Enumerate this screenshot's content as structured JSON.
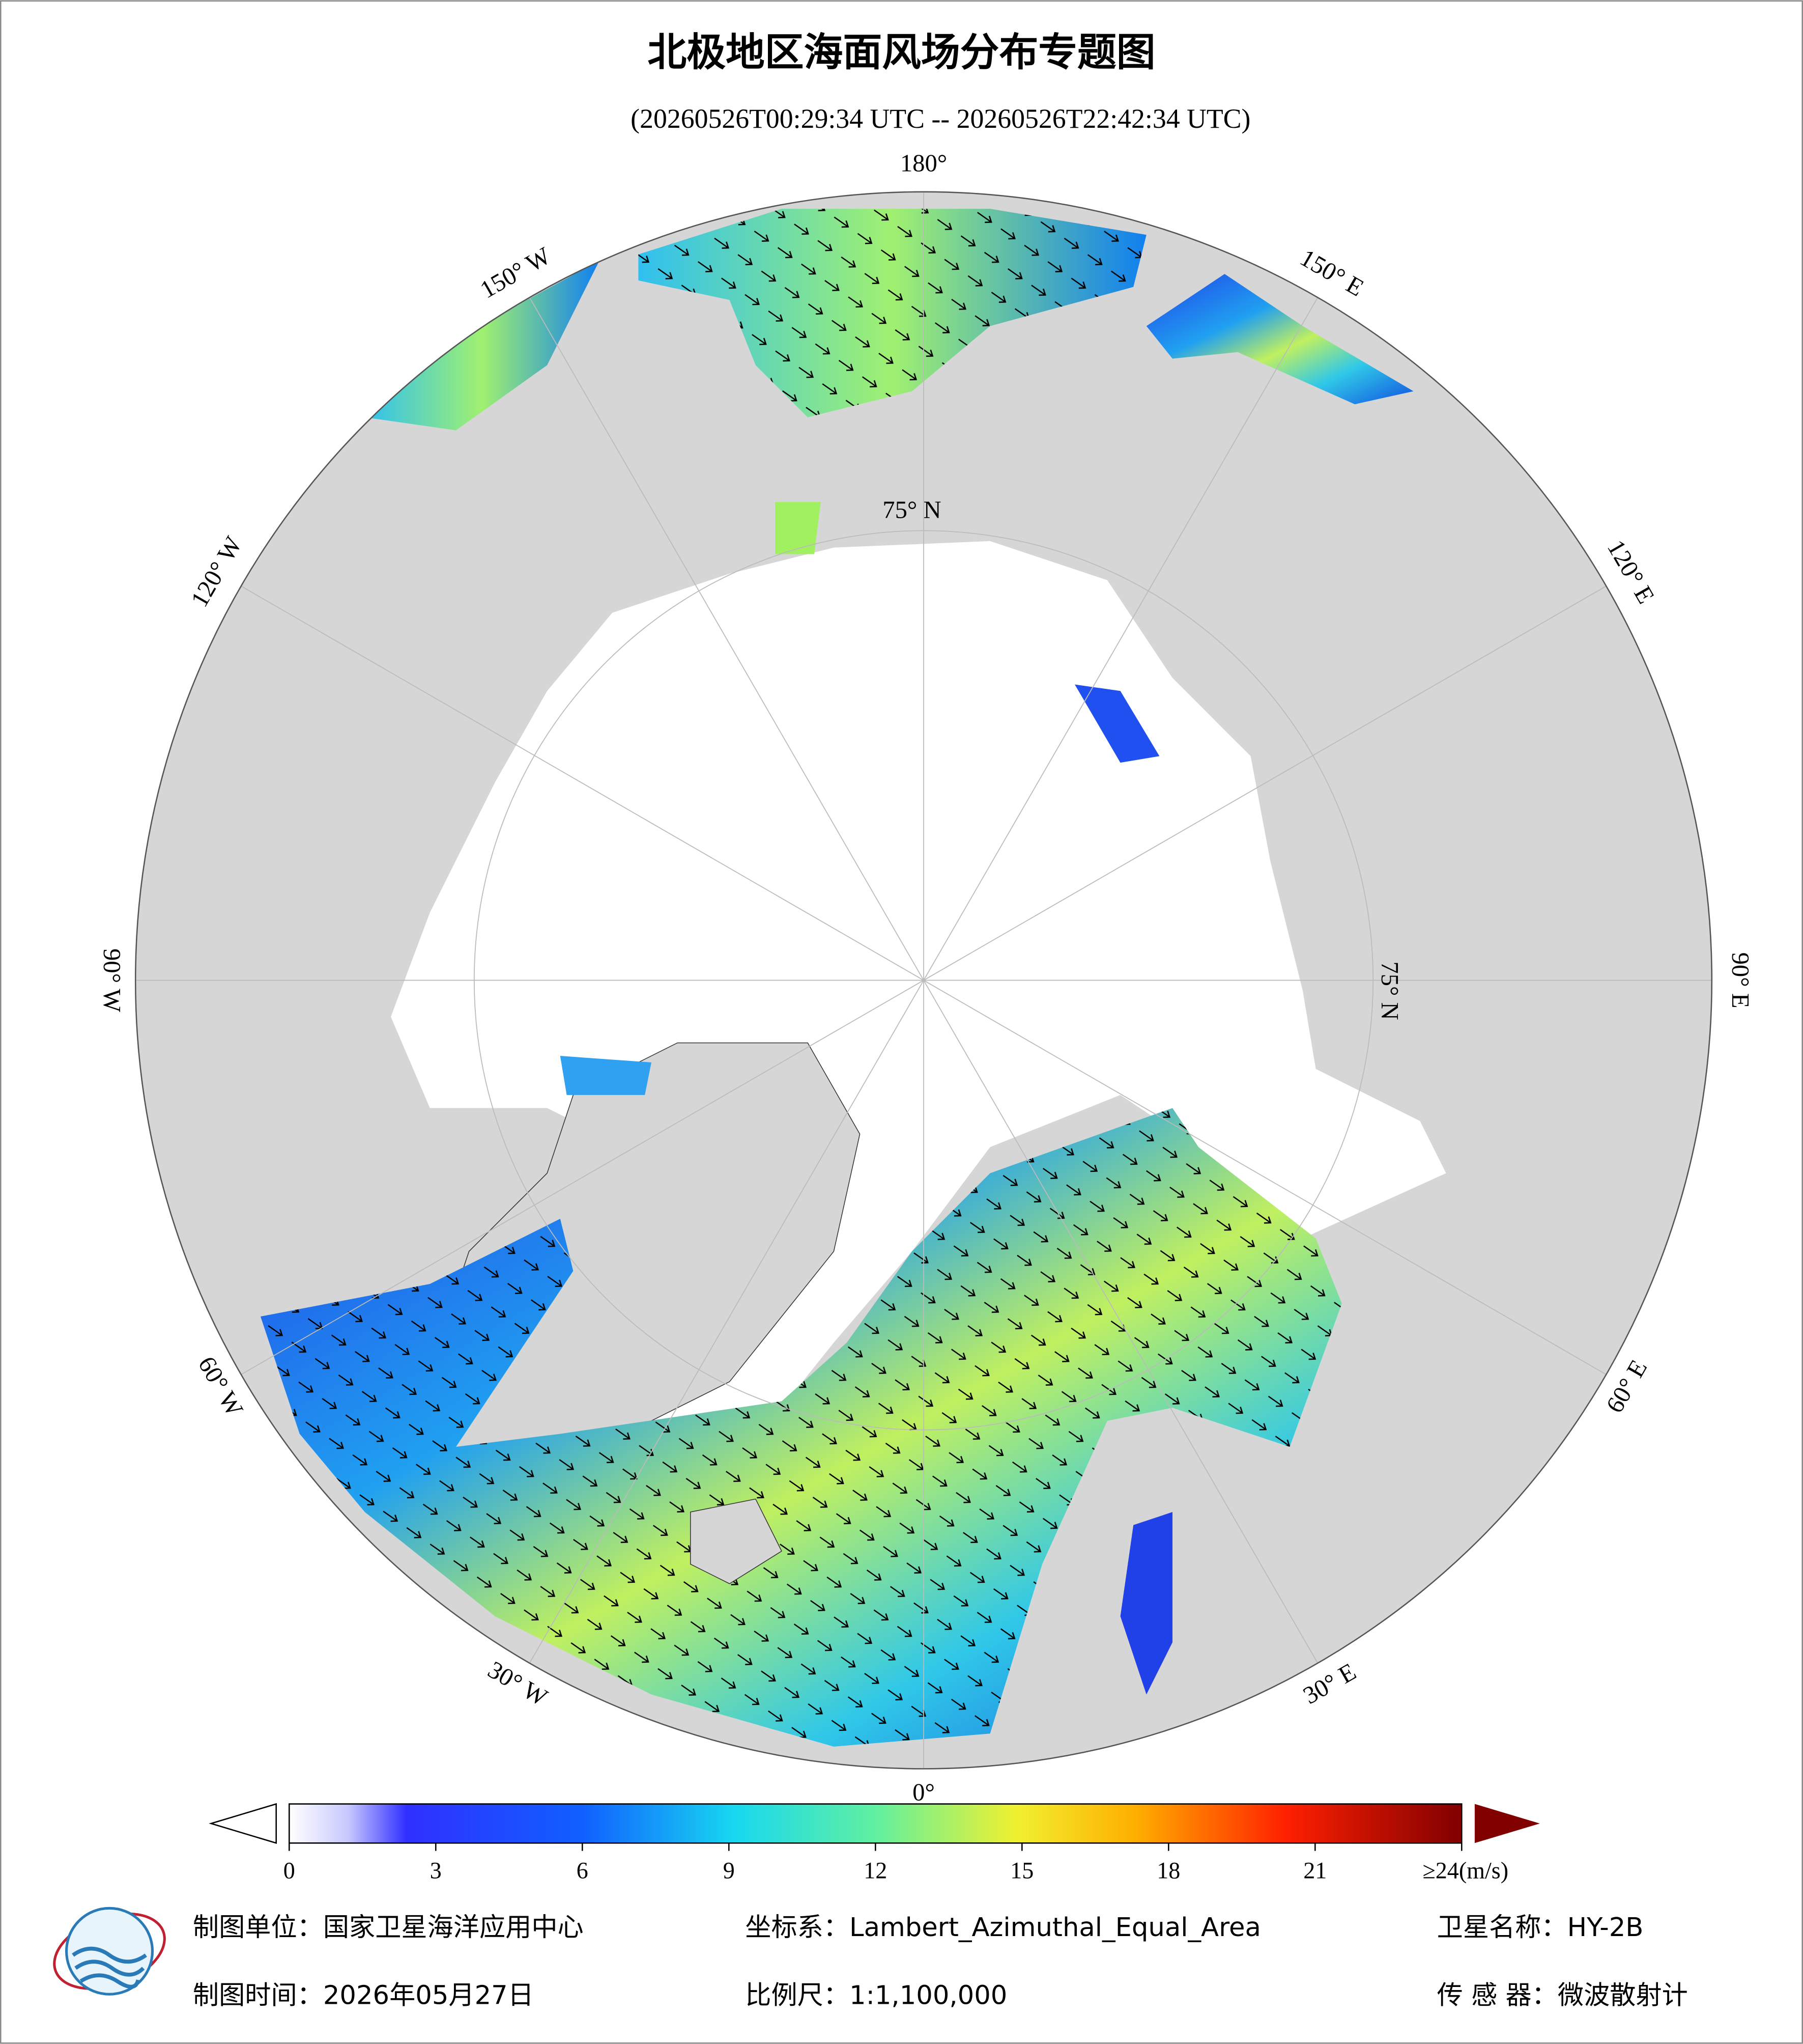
{
  "header": {
    "title": "北极地区海面风场分布专题图",
    "subtitle": "(20260526T00:29:34 UTC -- 20260526T22:42:34 UTC)"
  },
  "map": {
    "lon_labels": [
      "180°",
      "150° W",
      "120° W",
      "90° W",
      "60° W",
      "30° W",
      "0°",
      "30° E",
      "60° E",
      "90° E",
      "120° E",
      "150° E"
    ],
    "lat_labels": [
      "75° N",
      "75° N"
    ]
  },
  "colorbar": {
    "lim": [
      0,
      24
    ],
    "ticks": [
      0,
      3,
      6,
      9,
      12,
      15,
      18,
      21,
      {
        "value": 24,
        "label": "≥24(m/s)"
      }
    ]
  },
  "footer": {
    "unit": "制图单位：国家卫星海洋应用中心",
    "crs": "坐标系：Lambert_Azimuthal_Equal_Area",
    "satellite": "卫星名称：HY-2B",
    "date": "制图时间：2026年05月27日",
    "scale": "比例尺：1:1,100,000",
    "sensor": "传 感 器：微波散射计"
  }
}
